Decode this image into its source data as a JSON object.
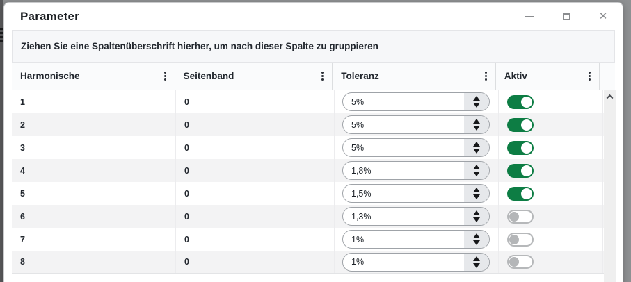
{
  "window": {
    "title": "Parameter",
    "close_glyph": "✕"
  },
  "grid": {
    "group_hint": "Ziehen Sie eine Spaltenüberschrift hierher, um nach dieser Spalte zu gruppieren",
    "columns": [
      "Harmonische",
      "Seitenband",
      "Toleranz",
      "Aktiv"
    ],
    "rows": [
      {
        "harmonische": "1",
        "seitenband": "0",
        "toleranz": "5%",
        "aktiv": true
      },
      {
        "harmonische": "2",
        "seitenband": "0",
        "toleranz": "5%",
        "aktiv": true
      },
      {
        "harmonische": "3",
        "seitenband": "0",
        "toleranz": "5%",
        "aktiv": true
      },
      {
        "harmonische": "4",
        "seitenband": "0",
        "toleranz": "1,8%",
        "aktiv": true
      },
      {
        "harmonische": "5",
        "seitenband": "0",
        "toleranz": "1,5%",
        "aktiv": true
      },
      {
        "harmonische": "6",
        "seitenband": "0",
        "toleranz": "1,3%",
        "aktiv": false
      },
      {
        "harmonische": "7",
        "seitenband": "0",
        "toleranz": "1%",
        "aktiv": false
      },
      {
        "harmonische": "8",
        "seitenband": "0",
        "toleranz": "1%",
        "aktiv": false
      }
    ]
  },
  "colors": {
    "toggle_on": "#0d7d44",
    "toggle_off_knob": "#b4b6b8"
  }
}
